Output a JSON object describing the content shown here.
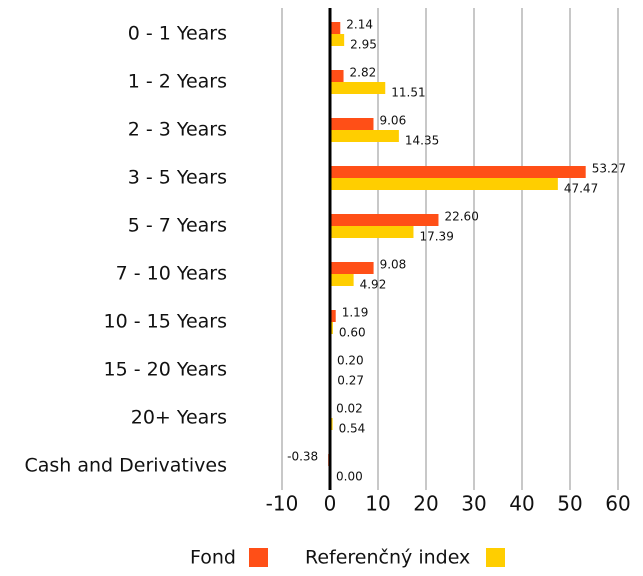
{
  "chart_data": {
    "type": "bar",
    "orientation": "horizontal",
    "categories": [
      "0 - 1 Years",
      "1 - 2 Years",
      "2 - 3 Years",
      "3 - 5 Years",
      "5 - 7 Years",
      "7 - 10 Years",
      "10 - 15 Years",
      "15 - 20 Years",
      "20+ Years",
      "Cash and Derivatives"
    ],
    "series": [
      {
        "name": "Fond",
        "color": "#ff4f17",
        "values": [
          2.14,
          2.82,
          9.06,
          53.27,
          22.6,
          9.08,
          1.19,
          0.2,
          0.02,
          -0.38
        ],
        "value_labels": [
          "2.14",
          "2.82",
          "9.06",
          "53.27",
          "22.60",
          "9.08",
          "1.19",
          "0.20",
          "0.02",
          "-0.38"
        ]
      },
      {
        "name": "Referenčný index",
        "color": "#ffce00",
        "values": [
          2.95,
          11.51,
          14.35,
          47.47,
          17.39,
          4.92,
          0.6,
          0.27,
          0.54,
          0
        ],
        "value_labels": [
          "2.95",
          "11.51",
          "14.35",
          "47.47",
          "17.39",
          "4.92",
          "0.60",
          "0.27",
          "0.54",
          "0.00"
        ]
      }
    ],
    "xlim": [
      -10,
      60
    ],
    "xticks": [
      -10,
      0,
      10,
      20,
      30,
      40,
      50,
      60
    ],
    "grid": true
  }
}
